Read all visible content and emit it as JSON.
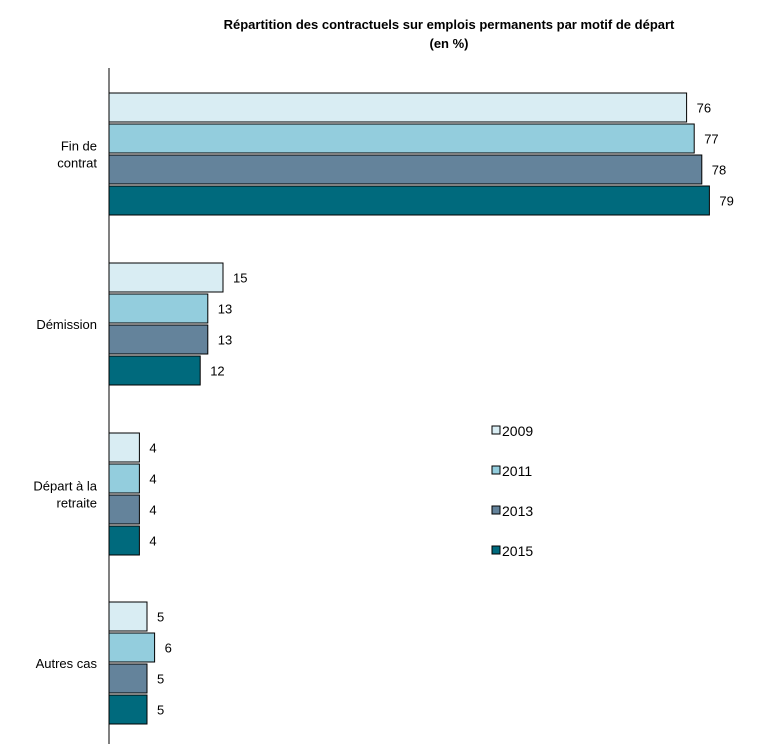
{
  "chart_data": {
    "type": "bar",
    "orientation": "horizontal",
    "title": "Répartition des contractuels sur emplois permanents  par motif de départ",
    "subtitle": "(en %)",
    "categories": [
      [
        "Fin de",
        "contrat"
      ],
      [
        "Démission"
      ],
      [
        "Départ à la",
        "retraite"
      ],
      [
        "Autres cas"
      ]
    ],
    "series": [
      {
        "name": "2009",
        "color": "#d9edf3",
        "values": [
          76,
          15,
          4,
          5
        ]
      },
      {
        "name": "2011",
        "color": "#93cddd",
        "values": [
          77,
          13,
          4,
          6
        ]
      },
      {
        "name": "2013",
        "color": "#64839b",
        "values": [
          78,
          13,
          4,
          5
        ]
      },
      {
        "name": "2015",
        "color": "#006a7d",
        "values": [
          79,
          12,
          4,
          5
        ]
      }
    ],
    "xlim": [
      0,
      100
    ],
    "grid": false,
    "legend_position": "right"
  }
}
